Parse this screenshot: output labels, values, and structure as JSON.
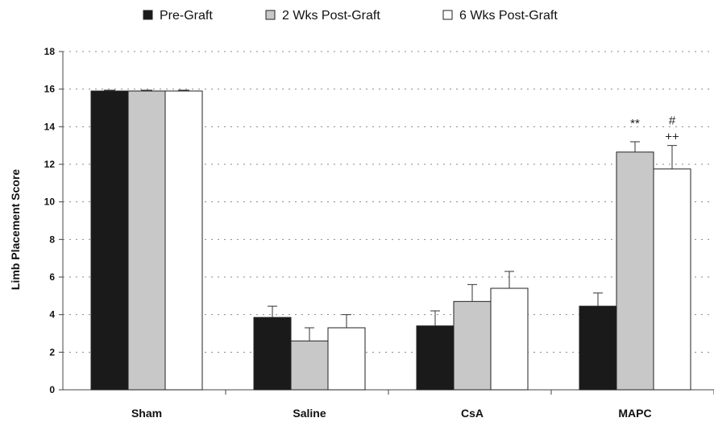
{
  "chart_data": {
    "type": "bar",
    "categories": [
      "Sham",
      "Saline",
      "CsA",
      "MAPC"
    ],
    "ylabel": "Limb Placement Score",
    "xlabel": "",
    "ylim": [
      0,
      18
    ],
    "yticks": [
      0,
      2,
      4,
      6,
      8,
      10,
      12,
      14,
      16,
      18
    ],
    "grid": "horizontal-dotted",
    "legend_position": "top",
    "series": [
      {
        "name": "Pre-Graft",
        "color": "#1a1a1a",
        "values": [
          15.9,
          3.85,
          3.4,
          4.45
        ],
        "errors": [
          0.0,
          0.6,
          0.8,
          0.7
        ]
      },
      {
        "name": "2 Wks Post-Graft",
        "color": "#c8c8c8",
        "values": [
          15.9,
          2.6,
          4.7,
          12.65
        ],
        "errors": [
          0.0,
          0.7,
          0.9,
          0.55
        ]
      },
      {
        "name": "6 Wks Post-Graft",
        "color": "#ffffff",
        "values": [
          15.9,
          3.3,
          5.4,
          11.75
        ],
        "errors": [
          0.0,
          0.7,
          0.9,
          1.25
        ]
      }
    ],
    "annotations": [
      {
        "text": "**",
        "category": "MAPC",
        "series": 1
      },
      {
        "text": "#",
        "category": "MAPC",
        "series": 2
      },
      {
        "text": "++",
        "category": "MAPC",
        "series": 2
      }
    ]
  }
}
